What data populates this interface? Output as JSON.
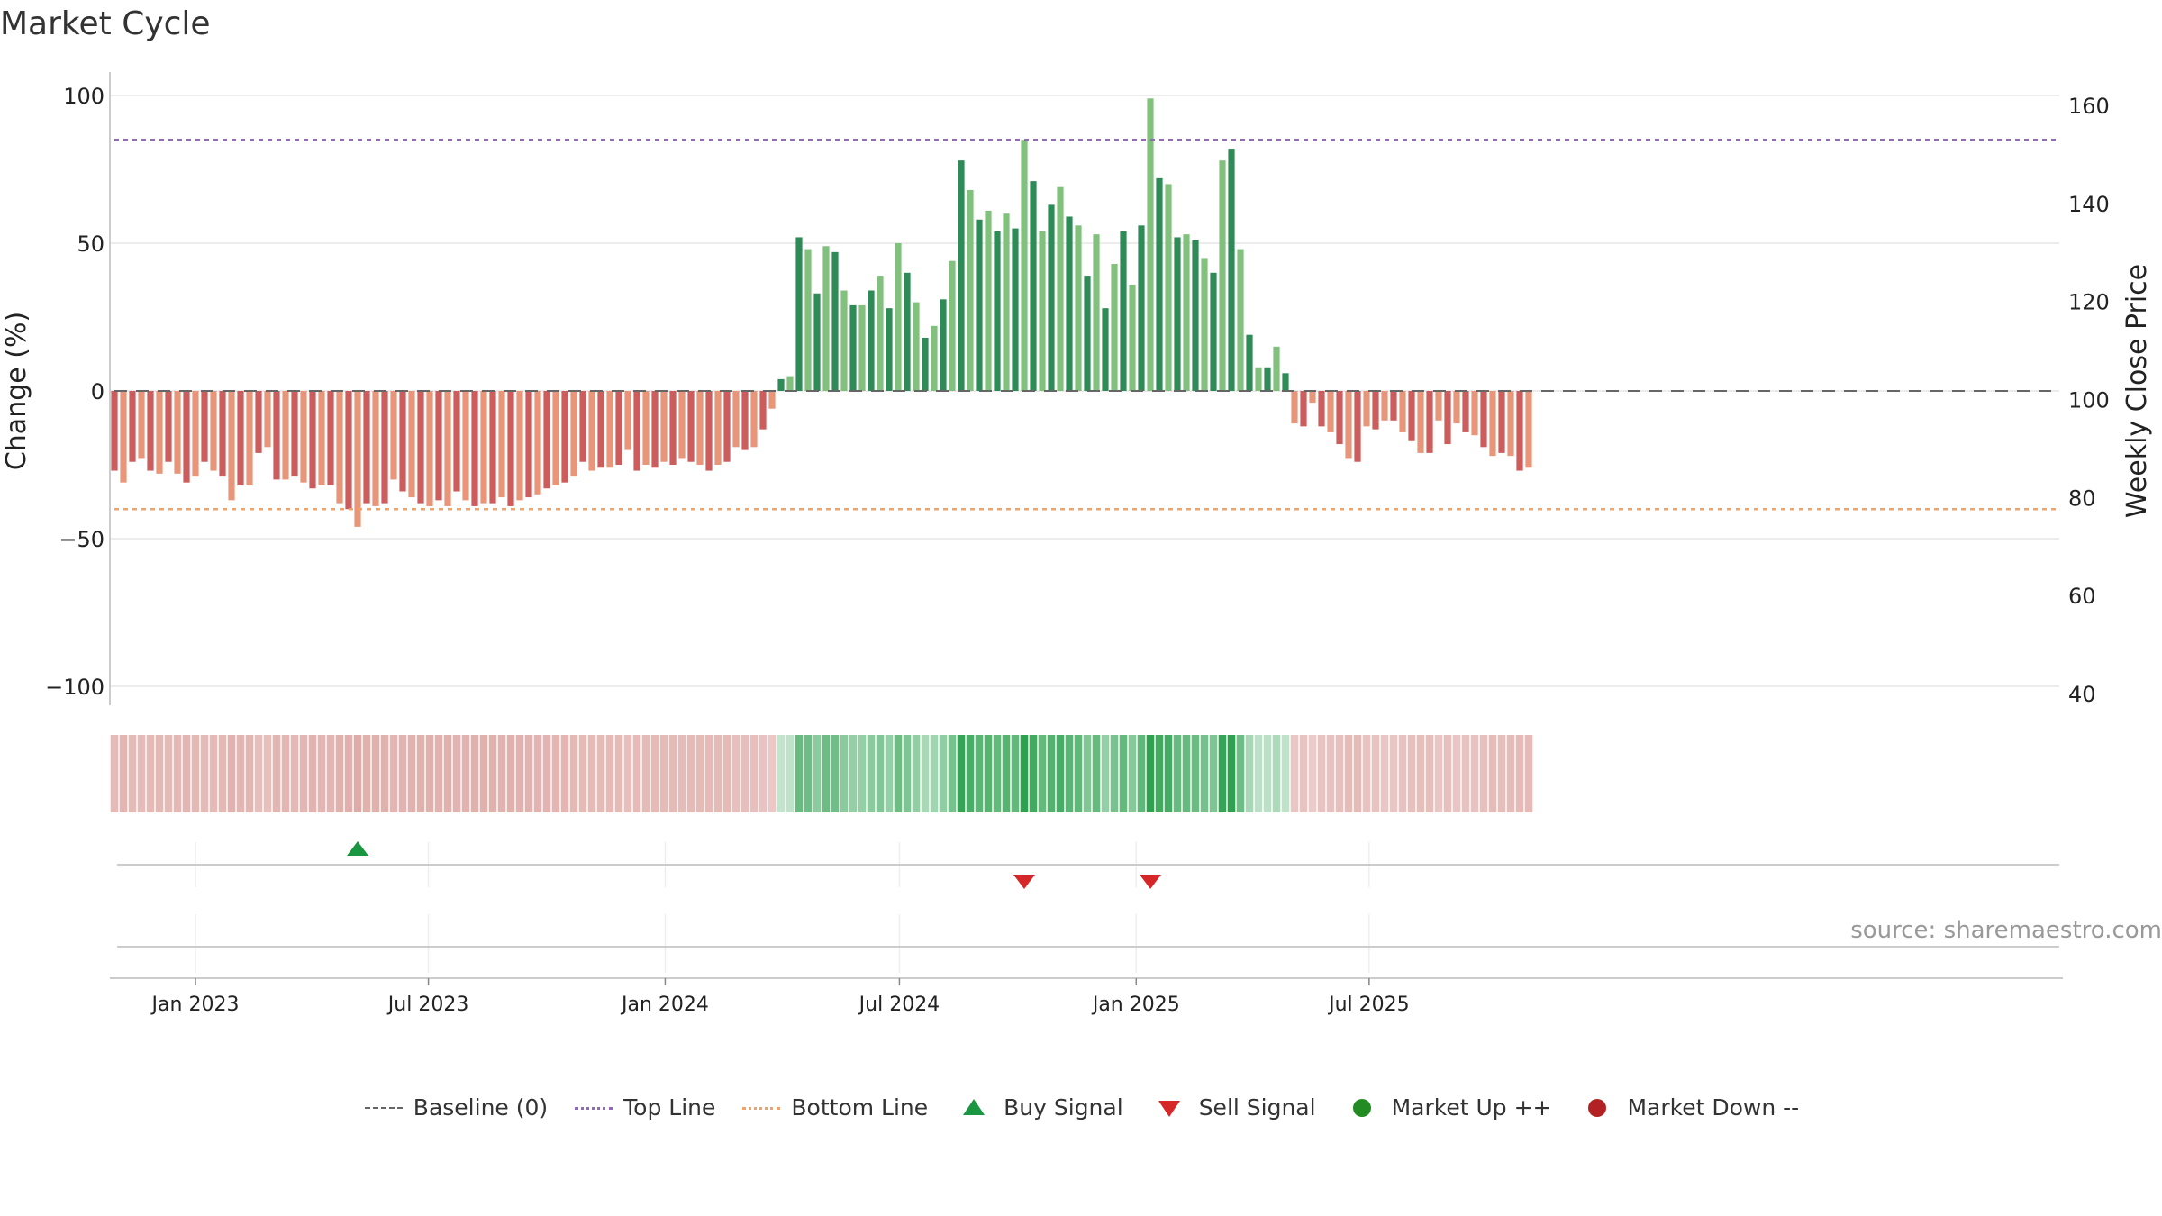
{
  "chart_data": {
    "type": "bar",
    "title": "Market Cycle",
    "ylabel_left": "Change (%)",
    "ylabel_right": "Weekly Close Price",
    "ylim_left": [
      -100,
      100
    ],
    "ylim_right": [
      40,
      160
    ],
    "yticks_left": [
      100,
      50,
      0,
      -50,
      -100
    ],
    "yticks_left_labels": [
      "100",
      "50",
      "0",
      "−50",
      "−100"
    ],
    "yticks_right": [
      160,
      140,
      120,
      100,
      80,
      60,
      40
    ],
    "x_ticks": [
      {
        "date": "2023-01-01",
        "label": "Jan 2023"
      },
      {
        "date": "2023-07-01",
        "label": "Jul 2023"
      },
      {
        "date": "2024-01-01",
        "label": "Jan 2024"
      },
      {
        "date": "2024-07-01",
        "label": "Jul 2024"
      },
      {
        "date": "2025-01-01",
        "label": "Jan 2025"
      },
      {
        "date": "2025-07-01",
        "label": "Jul 2025"
      }
    ],
    "x_start": "2022-10-30",
    "week_step_days": 7,
    "top_line": 85,
    "bottom_line": -40,
    "baseline": 0,
    "series": [
      {
        "name": "Change (%)",
        "values": [
          -27,
          -31,
          -24,
          -23,
          -27,
          -28,
          -24,
          -28,
          -31,
          -29,
          -24,
          -27,
          -29,
          -37,
          -32,
          -32,
          -21,
          -19,
          -30,
          -30,
          -29,
          -31,
          -33,
          -32,
          -32,
          -38,
          -40,
          -46,
          -38,
          -39,
          -38,
          -30,
          -34,
          -36,
          -38,
          -39,
          -37,
          -39,
          -34,
          -37,
          -39,
          -38,
          -38,
          -36,
          -39,
          -37,
          -36,
          -35,
          -33,
          -32,
          -31,
          -29,
          -24,
          -27,
          -26,
          -26,
          -25,
          -20,
          -27,
          -25,
          -26,
          -24,
          -25,
          -23,
          -24,
          -25,
          -27,
          -25,
          -24,
          -19,
          -20,
          -19,
          -13,
          -6,
          4,
          5,
          52,
          48,
          33,
          49,
          47,
          34,
          29,
          29,
          34,
          39,
          28,
          50,
          40,
          30,
          18,
          22,
          31,
          44,
          78,
          68,
          58,
          61,
          54,
          60,
          55,
          85,
          71,
          54,
          63,
          69,
          59,
          56,
          39,
          53,
          28,
          43,
          54,
          36,
          56,
          99,
          72,
          70,
          52,
          53,
          51,
          45,
          40,
          78,
          82,
          48,
          19,
          8,
          8,
          15,
          6,
          -11,
          -12,
          -4,
          -12,
          -14,
          -18,
          -23,
          -24,
          -12,
          -13,
          -10,
          -10,
          -14,
          -17,
          -21,
          -21,
          -10,
          -18,
          -11,
          -14,
          -15,
          -19,
          -22,
          -21,
          -22,
          -27,
          -26
        ]
      }
    ],
    "signals": [
      {
        "type": "buy",
        "week": 27
      },
      {
        "type": "sell",
        "week": 101
      },
      {
        "type": "sell",
        "week": 115
      }
    ],
    "legend": [
      {
        "label": "Baseline (0)",
        "symbol": "longdash",
        "color": "#666666"
      },
      {
        "label": "Top Line",
        "symbol": "dotted",
        "color": "#9467bd"
      },
      {
        "label": "Bottom Line",
        "symbol": "dotted",
        "color": "#f4a261"
      },
      {
        "label": "Buy Signal",
        "symbol": "triangle-up",
        "color": "#1a9641"
      },
      {
        "label": "Sell Signal",
        "symbol": "triangle-down",
        "color": "#d62728"
      },
      {
        "label": "Market Up ++",
        "symbol": "circle",
        "color": "#228b22"
      },
      {
        "label": "Market Down --",
        "symbol": "circle",
        "color": "#b22222"
      }
    ],
    "legend_position": "bottom-center",
    "grid": true
  },
  "colors": {
    "up_strong": "#2e8b57",
    "up_light": "#82c07e",
    "down_strong": "#cd5c5c",
    "down_light": "#e8957a",
    "top_line": "#9467bd",
    "bottom_line": "#f4a261",
    "buy": "#1a9641",
    "sell": "#d62728"
  },
  "source_text": "source: sharemaestro.com"
}
